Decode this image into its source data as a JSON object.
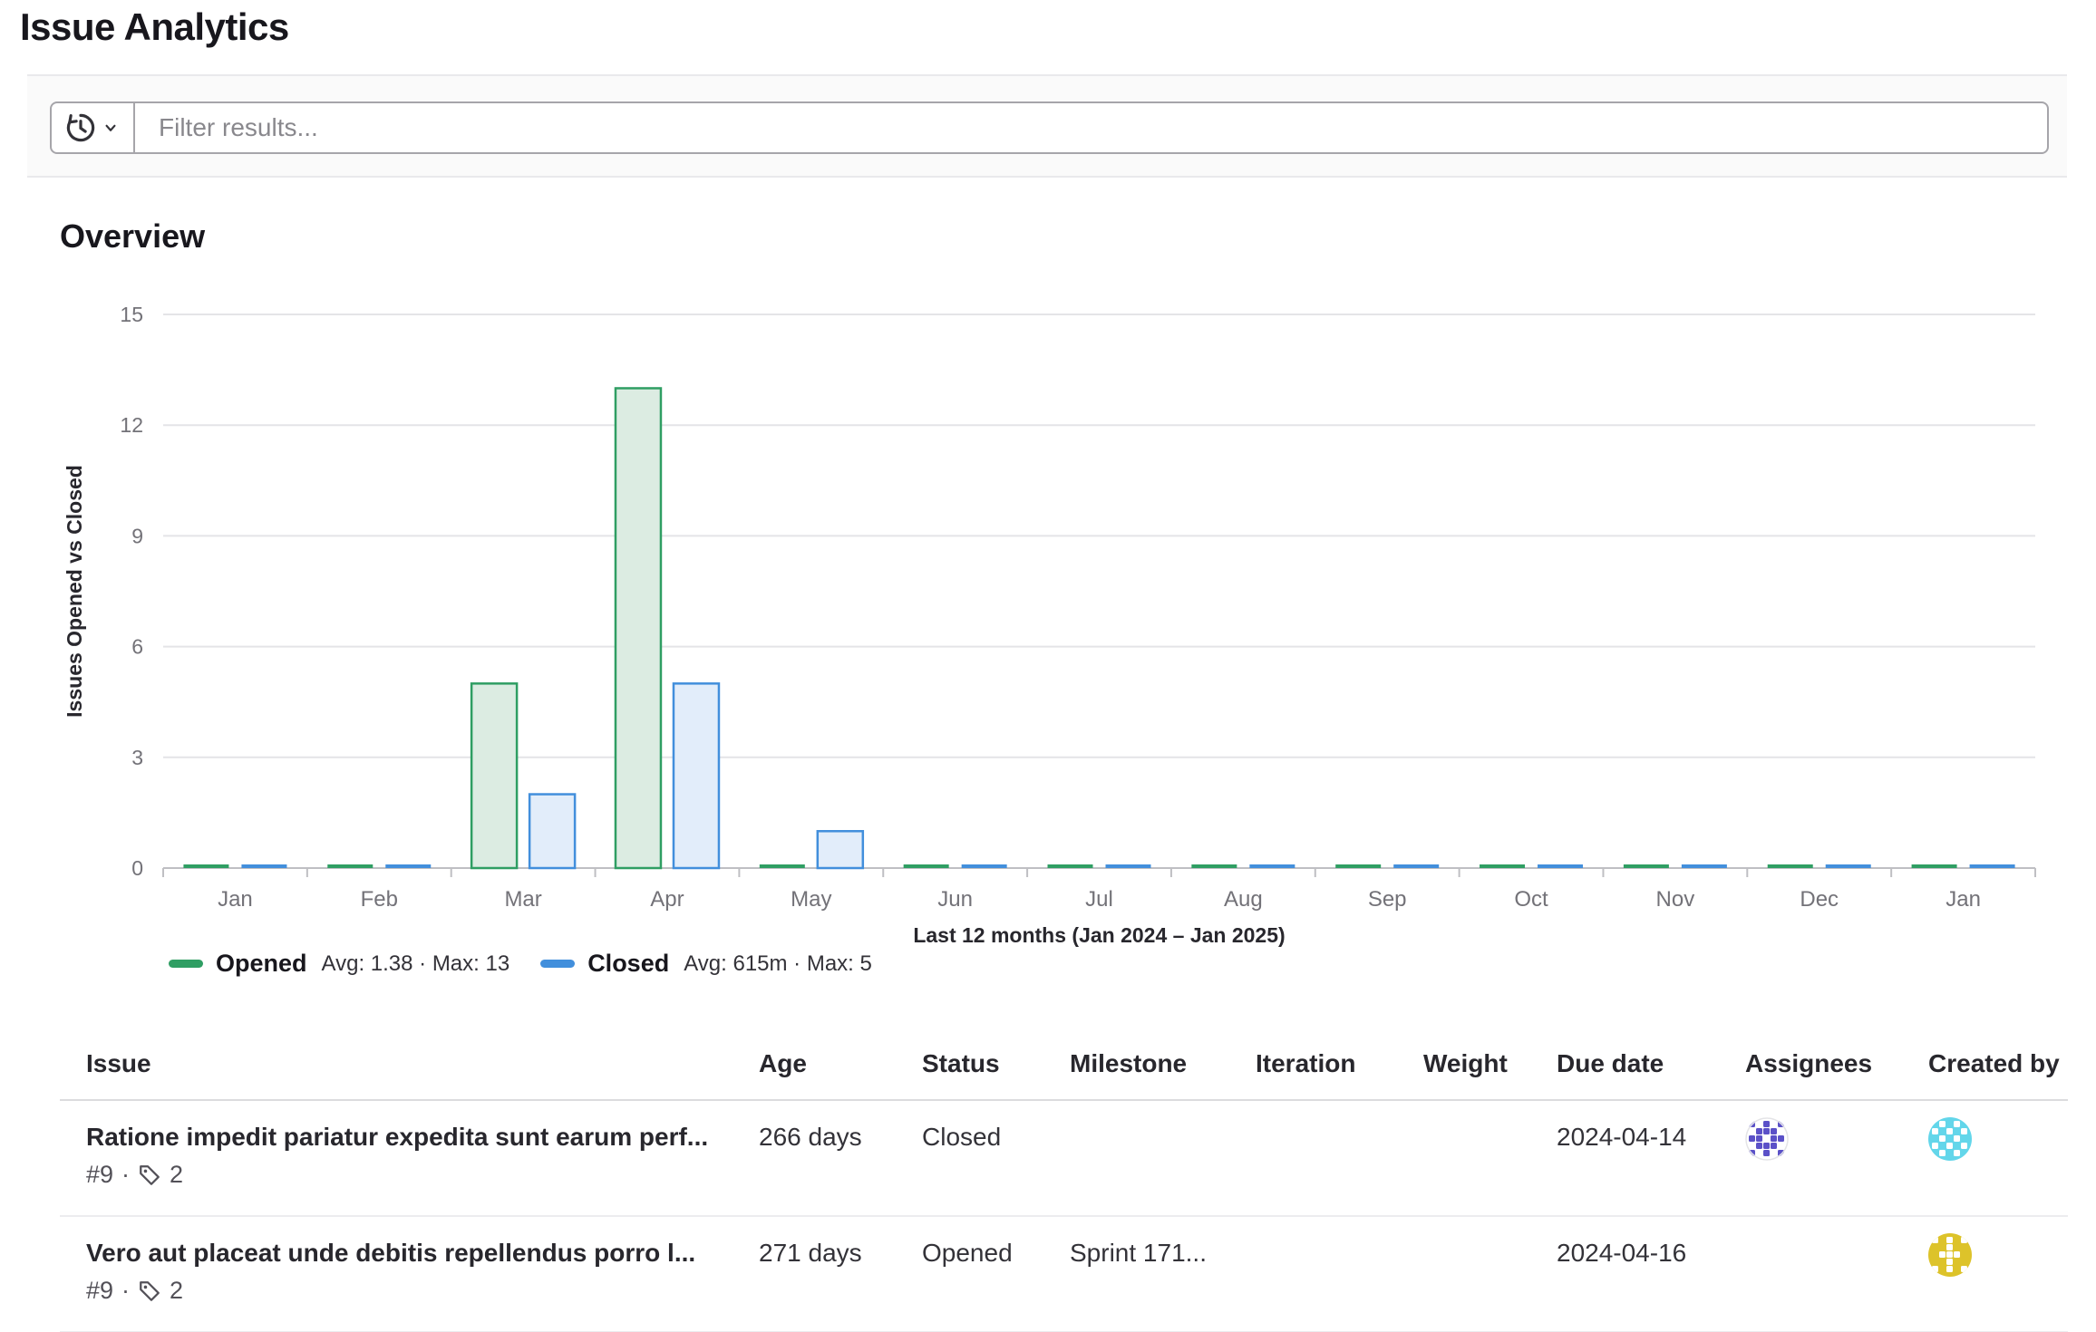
{
  "page": {
    "title": "Issue Analytics"
  },
  "filter": {
    "placeholder": "Filter results..."
  },
  "overview": {
    "heading": "Overview"
  },
  "chart_data": {
    "type": "bar",
    "title": "Overview",
    "categories": [
      "Jan",
      "Feb",
      "Mar",
      "Apr",
      "May",
      "Jun",
      "Jul",
      "Aug",
      "Sep",
      "Oct",
      "Nov",
      "Dec",
      "Jan"
    ],
    "series": [
      {
        "name": "Opened",
        "stats": "Avg: 1.38 · Max: 13",
        "color": "#2f9e63",
        "fill": "#dcece2",
        "values": [
          0,
          0,
          5,
          13,
          0,
          0,
          0,
          0,
          0,
          0,
          0,
          0,
          0
        ]
      },
      {
        "name": "Closed",
        "stats": "Avg: 615m · Max: 5",
        "color": "#428fdc",
        "fill": "#e2edfa",
        "values": [
          0,
          0,
          2,
          5,
          1,
          0,
          0,
          0,
          0,
          0,
          0,
          0,
          0
        ]
      }
    ],
    "ylabel": "Issues Opened vs Closed",
    "xlabel": "Last 12 months (Jan 2024 – Jan 2025)",
    "ylim": [
      0,
      15
    ],
    "yticks": [
      0,
      3,
      6,
      9,
      12,
      15
    ],
    "grid": true,
    "legend_position": "bottom-left"
  },
  "table": {
    "headers": [
      "Issue",
      "Age",
      "Status",
      "Milestone",
      "Iteration",
      "Weight",
      "Due date",
      "Assignees",
      "Created by"
    ],
    "rows": [
      {
        "title": "Ratione impedit pariatur expedita sunt earum perf...",
        "ref": "#9",
        "separator": "·",
        "labels_count": "2",
        "age": "266 days",
        "status": "Closed",
        "milestone": "",
        "iteration": "",
        "weight": "",
        "due_date": "2024-04-14",
        "assignee": {
          "bg": "#ffffff",
          "fg": "#5b51c8",
          "border": "#e4e4e7",
          "pattern": [
            "10101",
            "01110",
            "11011",
            "01110",
            "10101"
          ]
        },
        "created_by": {
          "bg": "#63d6ea",
          "fg": "#ffffff",
          "pattern": [
            "01010",
            "10101",
            "01010",
            "10101",
            "01010"
          ]
        }
      },
      {
        "title": "Vero aut placeat unde debitis repellendus porro l...",
        "ref": "#9",
        "separator": "·",
        "labels_count": "2",
        "age": "271 days",
        "status": "Opened",
        "milestone": "Sprint 171...",
        "iteration": "",
        "weight": "",
        "due_date": "2024-04-16",
        "created_by": {
          "bg": "#ddc32a",
          "fg": "#ffffff",
          "pattern": [
            "10101",
            "00100",
            "01110",
            "00100",
            "10101"
          ]
        }
      }
    ]
  }
}
